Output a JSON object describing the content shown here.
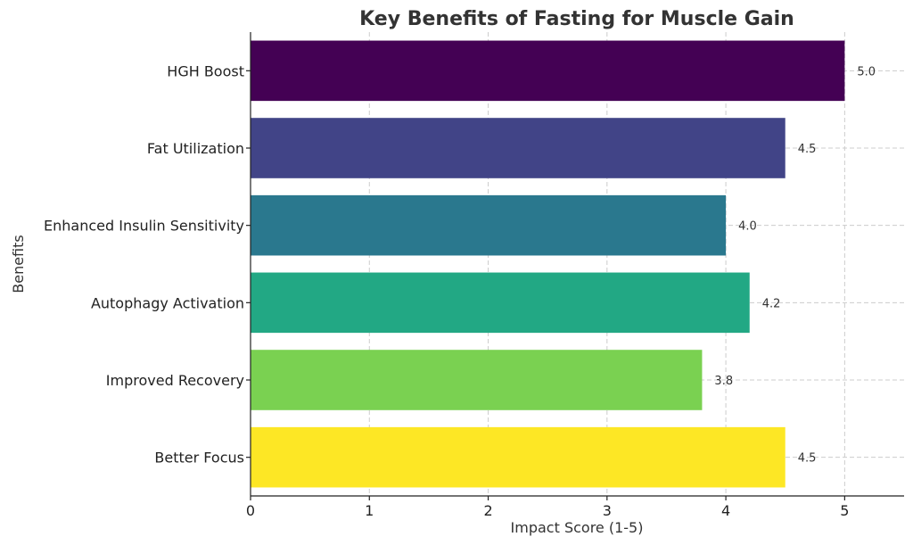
{
  "chart_data": {
    "type": "bar",
    "orientation": "horizontal",
    "title": "Key Benefits of Fasting for Muscle Gain",
    "xlabel": "Impact Score (1-5)",
    "ylabel": "Benefits",
    "xlim": [
      0,
      5.5
    ],
    "xticks": [
      0,
      1,
      2,
      3,
      4,
      5
    ],
    "grid": true,
    "categories": [
      "HGH Boost",
      "Fat Utilization",
      "Enhanced Insulin Sensitivity",
      "Autophagy Activation",
      "Improved Recovery",
      "Better Focus"
    ],
    "values": [
      5.0,
      4.5,
      4.0,
      4.2,
      3.8,
      4.5
    ],
    "value_labels": [
      "5.0",
      "4.5",
      "4.0",
      "4.2",
      "3.8",
      "4.5"
    ],
    "colors": [
      "#440154",
      "#414487",
      "#2a788e",
      "#22a884",
      "#7ad151",
      "#fde725"
    ]
  }
}
